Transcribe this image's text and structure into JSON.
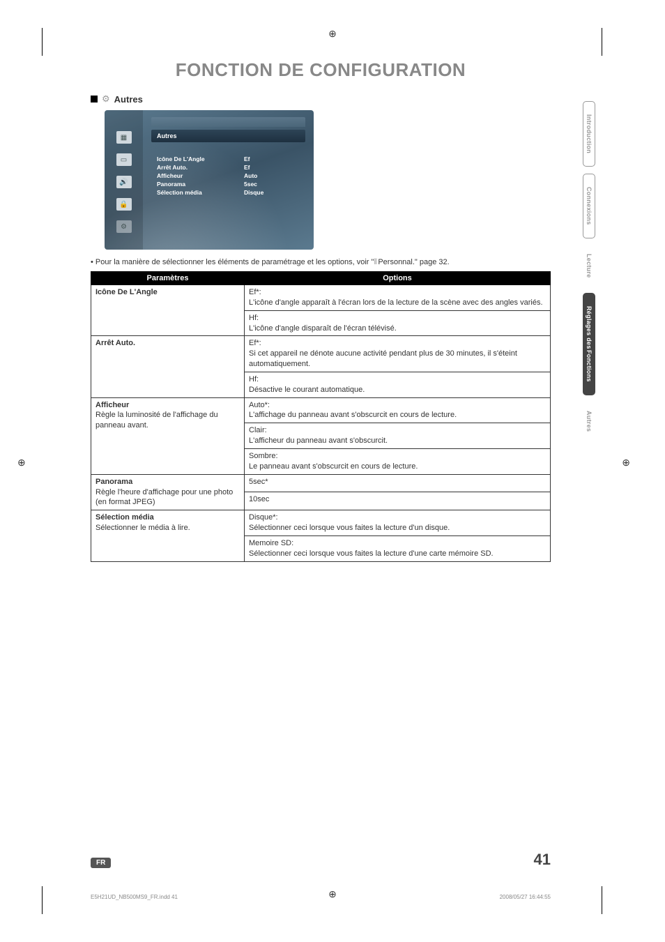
{
  "page_title": "FONCTION DE CONFIGURATION",
  "section": {
    "label": "Autres"
  },
  "osd": {
    "title": "Autres",
    "rows": [
      {
        "label": "Icône De L'Angle",
        "value": "Ef"
      },
      {
        "label": "Arrêt Auto.",
        "value": "Ef"
      },
      {
        "label": "Afficheur",
        "value": "Auto"
      },
      {
        "label": "Panorama",
        "value": "5sec"
      },
      {
        "label": "Sélection média",
        "value": "Disque"
      }
    ]
  },
  "note": {
    "prefix": "• Pour la manière de sélectionner les éléments de paramétrage et les options, voir \"",
    "link": "Personnal.\" page 32."
  },
  "table": {
    "head_param": "Paramètres",
    "head_opt": "Options",
    "rows": [
      {
        "param_bold": "Icône De L'Angle",
        "param_rest": "",
        "options": [
          "Ef*:\nL'icône d'angle apparaît à l'écran lors de la lecture de la scène avec des angles variés.",
          "Hf:\nL'icône d'angle disparaît de l'écran télévisé."
        ]
      },
      {
        "param_bold": "Arrêt Auto.",
        "param_rest": "",
        "options": [
          "Ef*:\nSi cet appareil ne dénote aucune activité pendant plus de 30 minutes, il s'éteint automatiquement.",
          "Hf:\nDésactive le courant automatique."
        ]
      },
      {
        "param_bold": "Afficheur",
        "param_rest": "Règle la luminosité de l'affichage du panneau avant.",
        "options": [
          "Auto*:\nL'affichage du panneau avant s'obscurcit en cours de lecture.",
          "Clair:\nL'afficheur du panneau avant s'obscurcit.",
          "Sombre:\nLe panneau avant s'obscurcit en cours de lecture."
        ]
      },
      {
        "param_bold": "Panorama",
        "param_rest": "Règle l'heure d'affichage pour une photo (en format JPEG)",
        "options": [
          "5sec*",
          "10sec"
        ]
      },
      {
        "param_bold": "Sélection média",
        "param_rest": "Sélectionner le média à lire.",
        "options": [
          "Disque*:\nSélectionner ceci lorsque vous faites la lecture d'un disque.",
          "Memoire SD:\nSélectionner ceci lorsque vous faites la lecture d'une carte mémoire SD."
        ]
      }
    ]
  },
  "side_tabs": {
    "t1": "Introduction",
    "t2": "Connexions",
    "t3": "Lecture",
    "t4a": "Réglages des",
    "t4b": "Fonctions",
    "t5": "Autres"
  },
  "footer": {
    "lang": "FR",
    "page": "41"
  },
  "meta": {
    "file": "E5H21UD_NB500MS9_FR.indd   41",
    "date": "2008/05/27   16:44:55"
  },
  "reg_mark": "⊕"
}
